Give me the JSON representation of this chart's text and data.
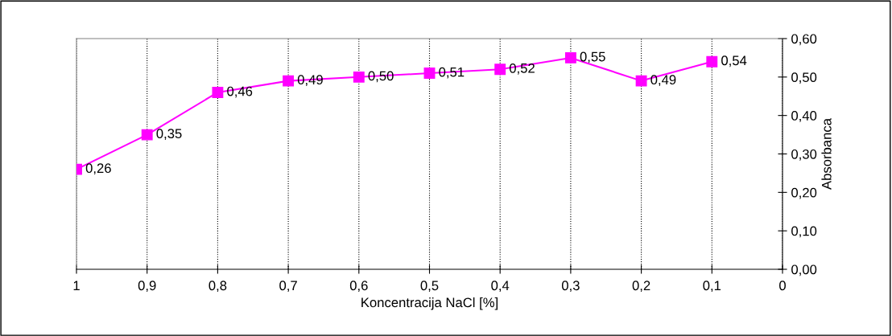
{
  "chart_data": {
    "type": "line",
    "xlabel": "Koncentracija NaCl [%]",
    "ylabel": "Absorbanca",
    "x": [
      1,
      0.9,
      0.8,
      0.7,
      0.6,
      0.5,
      0.4,
      0.3,
      0.2,
      0.1
    ],
    "series": [
      {
        "color": "#ff00ff",
        "values": [
          0.26,
          0.35,
          0.46,
          0.49,
          0.5,
          0.51,
          0.52,
          0.55,
          0.49,
          0.54
        ],
        "value_labels": [
          "0,26",
          "0,35",
          "0,46",
          "0,49",
          "0,50",
          "0,51",
          "0,52",
          "0,55",
          "0,49",
          "0,54"
        ]
      }
    ],
    "xlim": [
      1,
      0
    ],
    "xticks": [
      1,
      {
        "value": 0.9,
        "label": "0,9"
      },
      {
        "value": 0.8,
        "label": "0,8"
      },
      {
        "value": 0.7,
        "label": "0,7"
      },
      {
        "value": 0.6,
        "label": "0,6"
      },
      {
        "value": 0.5,
        "label": "0,5"
      },
      {
        "value": 0.4,
        "label": "0,4"
      },
      {
        "value": 0.3,
        "label": "0,3"
      },
      {
        "value": 0.2,
        "label": "0,2"
      },
      {
        "value": 0.1,
        "label": "0,1"
      },
      0
    ],
    "ylim": [
      0,
      0.6
    ],
    "yticks": [
      {
        "value": 0,
        "label": "0,00"
      },
      {
        "value": 0.1,
        "label": "0,10"
      },
      {
        "value": 0.2,
        "label": "0,20"
      },
      {
        "value": 0.3,
        "label": "0,30"
      },
      {
        "value": 0.4,
        "label": "0,40"
      },
      {
        "value": 0.5,
        "label": "0,50"
      },
      {
        "value": 0.6,
        "label": "0,60"
      }
    ],
    "grid": "x",
    "marker": "square",
    "line_style": "solid"
  }
}
